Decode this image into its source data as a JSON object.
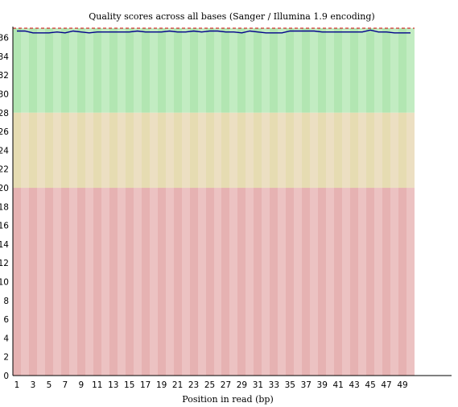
{
  "chart_data": {
    "type": "line",
    "title": "Quality scores across all bases (Sanger / Illumina 1.9 encoding)",
    "xlabel": "Position in read (bp)",
    "ylabel": "",
    "xlim": [
      1,
      50
    ],
    "ylim": [
      0,
      37
    ],
    "y_ticks": [
      "0",
      "2",
      "4",
      "6",
      "8",
      "10",
      "12",
      "14",
      "16",
      "18",
      "20",
      "22",
      "24",
      "26",
      "28",
      "30",
      "32",
      "34",
      "36"
    ],
    "x_ticks": [
      "1",
      "3",
      "5",
      "7",
      "9",
      "11",
      "13",
      "15",
      "17",
      "19",
      "21",
      "23",
      "25",
      "27",
      "29",
      "31",
      "33",
      "35",
      "37",
      "39",
      "41",
      "43",
      "45",
      "47",
      "49"
    ],
    "quality_bands": [
      {
        "from": 28,
        "to": 37,
        "colors": [
          "#b2e6b2",
          "#c2ecc2"
        ]
      },
      {
        "from": 20,
        "to": 28,
        "colors": [
          "#e6dcb2",
          "#ecdfc2"
        ]
      },
      {
        "from": 0,
        "to": 20,
        "colors": [
          "#e6b2b2",
          "#ecc2c2"
        ]
      }
    ],
    "colors": {
      "line": "#00008b",
      "max_line": "#cc0000",
      "axis": "#000000"
    },
    "series": [
      {
        "x": [
          1,
          2,
          3,
          4,
          5,
          6,
          7,
          8,
          9,
          10,
          11,
          12,
          13,
          14,
          15,
          16,
          17,
          18,
          19,
          20,
          21,
          22,
          23,
          24,
          25,
          26,
          27,
          28,
          29,
          30,
          31,
          32,
          33,
          34,
          35,
          36,
          37,
          38,
          39,
          40,
          41,
          42,
          43,
          44,
          45,
          46,
          47,
          48,
          49,
          50
        ],
        "values": [
          36.7,
          36.7,
          36.5,
          36.5,
          36.5,
          36.6,
          36.5,
          36.7,
          36.6,
          36.5,
          36.6,
          36.6,
          36.6,
          36.6,
          36.6,
          36.7,
          36.6,
          36.6,
          36.6,
          36.7,
          36.6,
          36.6,
          36.7,
          36.6,
          36.7,
          36.7,
          36.6,
          36.6,
          36.5,
          36.7,
          36.6,
          36.5,
          36.5,
          36.5,
          36.7,
          36.7,
          36.7,
          36.7,
          36.6,
          36.6,
          36.6,
          36.6,
          36.6,
          36.6,
          36.8,
          36.6,
          36.6,
          36.5,
          36.5,
          36.5
        ]
      }
    ]
  }
}
